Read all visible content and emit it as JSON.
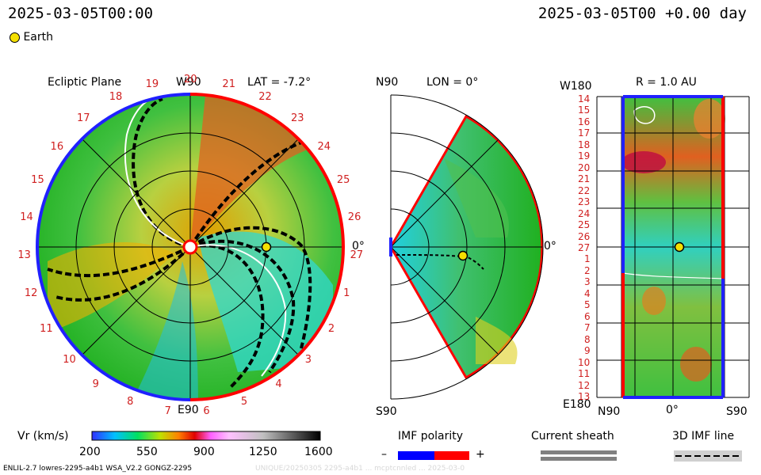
{
  "header": {
    "left_datetime": "2025-03-05T00:00",
    "right_datetime": "2025-03-05T00 +0.00 day",
    "earth_label": "Earth"
  },
  "ecliptic_panel": {
    "title": "Ecliptic Plane",
    "top_label": "W90",
    "bottom_label": "E90",
    "right_label": "0°",
    "lat_label": "LAT = -7.2°",
    "rotation_numbers": [
      "20",
      "21",
      "22",
      "23",
      "24",
      "25",
      "26",
      "27",
      "1",
      "2",
      "3",
      "4",
      "5",
      "6",
      "7",
      "8",
      "9",
      "10",
      "11",
      "12",
      "13",
      "14",
      "15",
      "16",
      "17",
      "18",
      "19"
    ]
  },
  "meridional_panel": {
    "top_label": "N90",
    "lon_label": "LON = 0°",
    "right_label": "0°",
    "bottom_label": "S90"
  },
  "synoptic_panel": {
    "title": "R = 1.0 AU",
    "top_left_label": "W180",
    "bottom_left_label": "E180",
    "x_labels": [
      "N90",
      "0°",
      "S90"
    ],
    "y_labels": [
      "14",
      "15",
      "16",
      "17",
      "18",
      "19",
      "20",
      "21",
      "22",
      "23",
      "24",
      "25",
      "26",
      "27",
      "1",
      "2",
      "3",
      "4",
      "5",
      "6",
      "7",
      "8",
      "9",
      "10",
      "11",
      "12",
      "13"
    ]
  },
  "colorbar": {
    "label": "Vr (km/s)",
    "ticks": [
      "200",
      "550",
      "900",
      "1250",
      "1600"
    ]
  },
  "legend": {
    "imf_polarity": "IMF polarity",
    "minus": "–",
    "plus": "+",
    "current_sheath": "Current sheath",
    "imf_line": "3D IMF line"
  },
  "footer": {
    "model_info": "ENLIL-2.7 lowres-2295-a4b1 WSA_V2.2 GONGZ-2295",
    "watermark": "UNIQUE/20250305 2295-a4b1 ... mcptcnnled ... 2025-03-0"
  },
  "colors": {
    "positive_polarity": "#ff0000",
    "negative_polarity": "#0000ff",
    "earth_marker": "#f5e000",
    "label_red": "#d02020"
  }
}
